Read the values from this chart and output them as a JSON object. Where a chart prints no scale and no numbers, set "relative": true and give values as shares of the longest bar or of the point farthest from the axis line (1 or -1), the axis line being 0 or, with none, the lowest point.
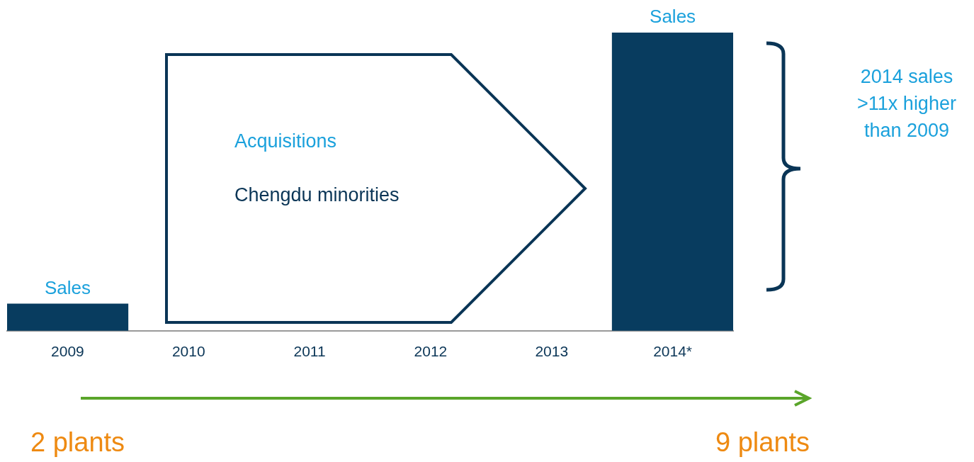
{
  "chart_data": {
    "type": "bar",
    "relative": true,
    "categories": [
      "2009",
      "2010",
      "2011",
      "2012",
      "2013",
      "2014*"
    ],
    "values": [
      0.09,
      null,
      null,
      null,
      null,
      1
    ],
    "color": "#083c5f",
    "annotations": [
      {
        "text": "Sales",
        "x": "2009",
        "y": 0.09
      },
      {
        "text": "Sales",
        "x": "2014*",
        "y": 1
      },
      "Acquisitions",
      "Chengdu minorities",
      "2014 sales >11x higher than 2009",
      "2 plants",
      "9 plants"
    ]
  }
}
